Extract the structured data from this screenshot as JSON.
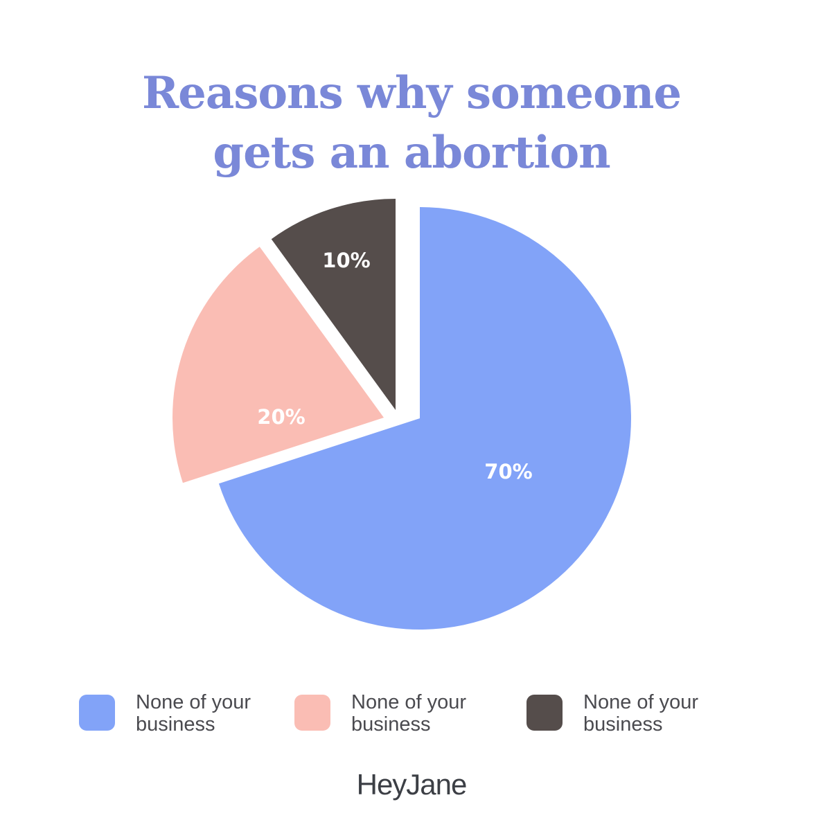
{
  "title_lines": [
    "Reasons why someone",
    "gets an abortion"
  ],
  "colors": {
    "title": "#7a88d8",
    "background": "#ffffff",
    "legend_text": "#4a4a4f"
  },
  "chart_data": {
    "type": "pie",
    "title": "Reasons why someone gets an abortion",
    "slices": [
      {
        "label": "None of your business",
        "value": 70,
        "value_label": "70%",
        "color": "#82a3f8"
      },
      {
        "label": "None of your business",
        "value": 20,
        "value_label": "20%",
        "color": "#fabdb4"
      },
      {
        "label": "None of your business",
        "value": 10,
        "value_label": "10%",
        "color": "#554d4b"
      }
    ],
    "legend": {
      "placement": "bottom",
      "entries": [
        {
          "line1": "None of your",
          "line2": "business",
          "color": "#82a3f8"
        },
        {
          "line1": "None of your",
          "line2": "business",
          "color": "#fabdb4"
        },
        {
          "line1": "None of your",
          "line2": "business",
          "color": "#554d4b"
        }
      ]
    }
  },
  "logo": {
    "text": "HeyJane"
  }
}
